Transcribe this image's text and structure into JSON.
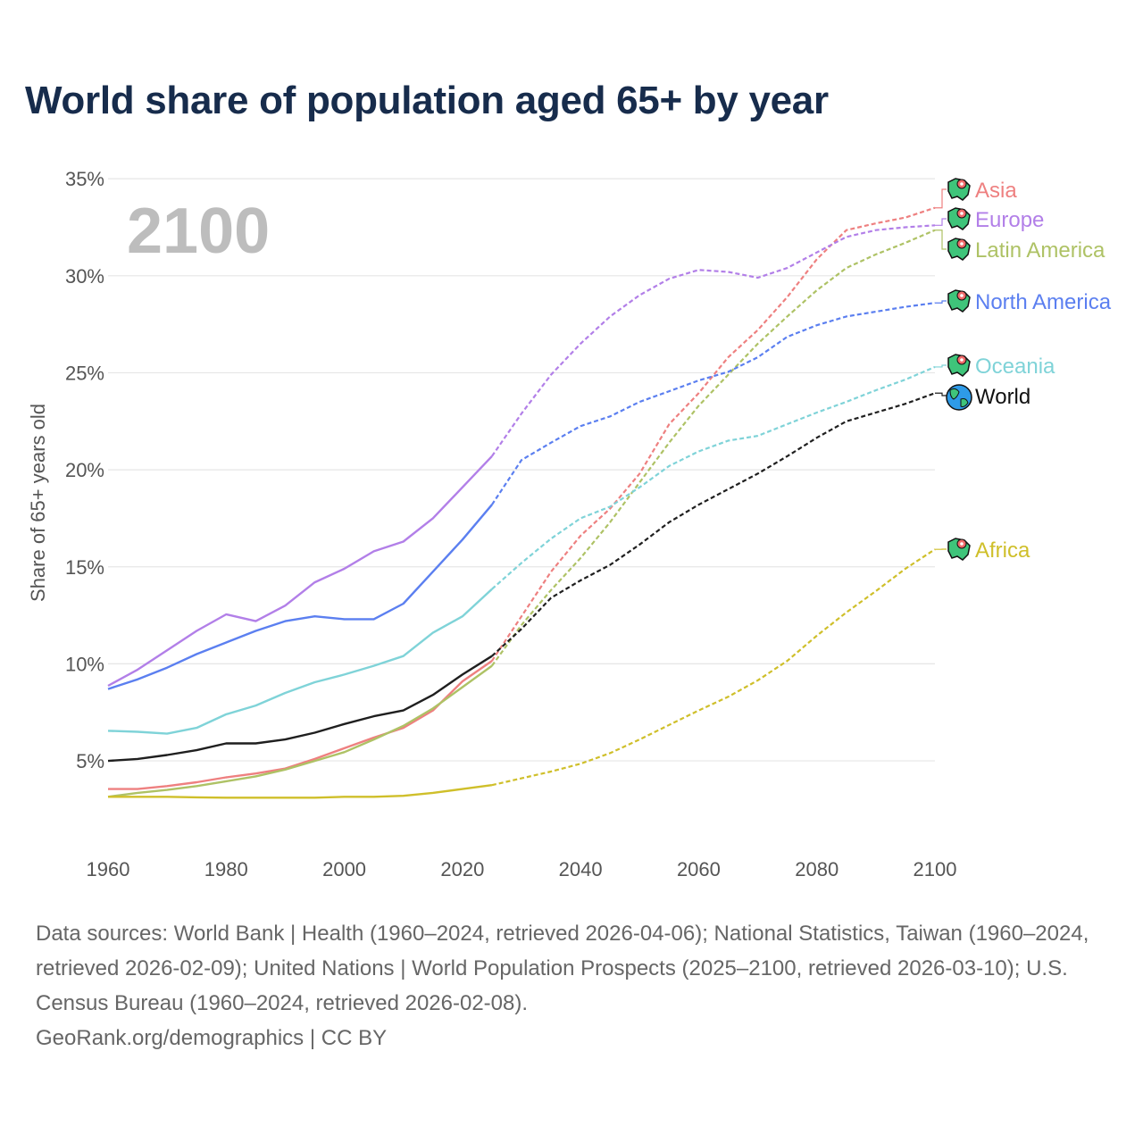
{
  "chart_data": {
    "type": "line",
    "title": "World share of population aged 65+ by year",
    "year_watermark": "2100",
    "xlabel": "",
    "ylabel": "Share of 65+ years old",
    "xlim": [
      1960,
      2100
    ],
    "ylim": [
      0,
      35
    ],
    "x_ticks": [
      "1960",
      "1980",
      "2000",
      "2020",
      "2040",
      "2060",
      "2080",
      "2100"
    ],
    "y_ticks": [
      "5%",
      "10%",
      "15%",
      "20%",
      "25%",
      "30%",
      "35%"
    ],
    "y_tick_values": [
      5,
      10,
      15,
      20,
      25,
      30,
      35
    ],
    "x_tick_values": [
      1960,
      1980,
      2000,
      2020,
      2040,
      2060,
      2080,
      2100
    ],
    "grid": true,
    "projection_start": 2025,
    "x": [
      1960,
      1965,
      1970,
      1975,
      1980,
      1985,
      1990,
      1995,
      2000,
      2005,
      2010,
      2015,
      2020,
      2025,
      2030,
      2035,
      2040,
      2045,
      2050,
      2055,
      2060,
      2065,
      2070,
      2075,
      2080,
      2085,
      2090,
      2095,
      2100
    ],
    "series": [
      {
        "name": "Asia",
        "color": "#ee8080",
        "icon": "asia-map-icon",
        "values": [
          3.55,
          3.55,
          3.7,
          3.9,
          4.15,
          4.35,
          4.6,
          5.1,
          5.65,
          6.2,
          6.7,
          7.6,
          9.1,
          10.15,
          12.45,
          14.75,
          16.6,
          18.0,
          19.8,
          22.35,
          23.95,
          25.8,
          27.2,
          28.9,
          30.85,
          32.35,
          32.7,
          33.0,
          33.5
        ]
      },
      {
        "name": "Europe",
        "color": "#b27fe8",
        "icon": "europe-map-icon",
        "values": [
          8.87,
          9.7,
          10.7,
          11.7,
          12.55,
          12.2,
          13.0,
          14.2,
          14.9,
          15.8,
          16.3,
          17.5,
          19.1,
          20.7,
          22.9,
          24.9,
          26.5,
          27.9,
          29.0,
          29.85,
          30.3,
          30.2,
          29.9,
          30.4,
          31.2,
          32.0,
          32.35,
          32.5,
          32.6
        ]
      },
      {
        "name": "Latin America",
        "color": "#aec265",
        "icon": "latin-america-map-icon",
        "values": [
          3.15,
          3.35,
          3.5,
          3.7,
          3.95,
          4.2,
          4.55,
          5.0,
          5.45,
          6.1,
          6.8,
          7.7,
          8.8,
          9.9,
          12.0,
          13.8,
          15.45,
          17.3,
          19.35,
          21.4,
          23.3,
          24.9,
          26.5,
          27.9,
          29.25,
          30.4,
          31.1,
          31.7,
          32.35
        ]
      },
      {
        "name": "North America",
        "color": "#5b7ff0",
        "icon": "north-america-map-icon",
        "values": [
          8.7,
          9.2,
          9.8,
          10.5,
          11.1,
          11.7,
          12.2,
          12.45,
          12.3,
          12.3,
          13.1,
          14.75,
          16.4,
          18.2,
          20.5,
          21.4,
          22.25,
          22.75,
          23.5,
          24.05,
          24.6,
          25.05,
          25.8,
          26.85,
          27.45,
          27.9,
          28.15,
          28.4,
          28.6
        ]
      },
      {
        "name": "Oceania",
        "color": "#7fd3d8",
        "icon": "oceania-map-icon",
        "values": [
          6.55,
          6.5,
          6.4,
          6.7,
          7.4,
          7.85,
          8.5,
          9.05,
          9.45,
          9.9,
          10.4,
          11.6,
          12.45,
          13.85,
          15.2,
          16.45,
          17.5,
          18.1,
          19.1,
          20.2,
          20.95,
          21.5,
          21.75,
          22.35,
          22.95,
          23.5,
          24.1,
          24.65,
          25.3
        ]
      },
      {
        "name": "World",
        "color": "#1f1f1f",
        "icon": "globe-icon",
        "values": [
          5.0,
          5.1,
          5.3,
          5.55,
          5.9,
          5.9,
          6.1,
          6.45,
          6.9,
          7.3,
          7.6,
          8.4,
          9.45,
          10.4,
          11.8,
          13.4,
          14.3,
          15.1,
          16.15,
          17.3,
          18.2,
          19.0,
          19.8,
          20.7,
          21.65,
          22.5,
          22.95,
          23.4,
          23.95
        ]
      },
      {
        "name": "Africa",
        "color": "#cfbf2a",
        "icon": "africa-map-icon",
        "values": [
          3.15,
          3.15,
          3.15,
          3.12,
          3.1,
          3.1,
          3.1,
          3.1,
          3.15,
          3.15,
          3.2,
          3.35,
          3.55,
          3.75,
          4.1,
          4.45,
          4.85,
          5.4,
          6.1,
          6.85,
          7.6,
          8.3,
          9.15,
          10.15,
          11.45,
          12.65,
          13.75,
          14.9,
          15.9
        ]
      }
    ]
  },
  "footer": {
    "sources": "Data sources: World Bank | Health (1960–2024, retrieved 2026-04-06); National Statistics, Taiwan (1960–2024, retrieved 2026-02-09); United Nations | World Population Prospects (2025–2100, retrieved 2026-03-10); U.S. Census Bureau (1960–2024, retrieved 2026-02-08).",
    "credit": "GeoRank.org/demographics | CC BY"
  }
}
